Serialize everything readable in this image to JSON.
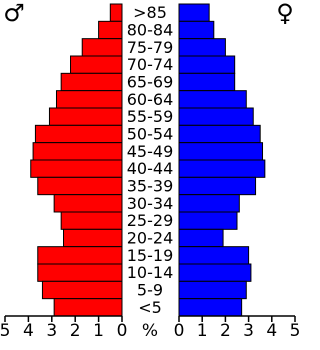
{
  "chart_data": {
    "type": "pyramid",
    "categories": [
      ">85",
      "80-84",
      "75-79",
      "70-74",
      "65-69",
      "60-64",
      "55-59",
      "50-54",
      "45-49",
      "40-44",
      "35-39",
      "30-34",
      "25-29",
      "20-24",
      "15-19",
      "10-14",
      "5-9",
      "<5"
    ],
    "series": [
      {
        "name": "♂",
        "color": "#ff0000",
        "values": [
          0.5,
          1.0,
          1.7,
          2.2,
          2.6,
          2.8,
          3.1,
          3.7,
          3.8,
          3.9,
          3.6,
          2.9,
          2.6,
          2.5,
          3.6,
          3.6,
          3.4,
          2.9
        ]
      },
      {
        "name": "♀",
        "color": "#0000ff",
        "values": [
          1.3,
          1.5,
          2.0,
          2.4,
          2.4,
          2.9,
          3.2,
          3.5,
          3.6,
          3.7,
          3.3,
          2.6,
          2.5,
          1.9,
          3.0,
          3.1,
          2.9,
          2.7
        ]
      }
    ],
    "x_label": "%",
    "xlim": [
      0,
      5
    ],
    "xticks": [
      0,
      1,
      2,
      3,
      4,
      5
    ]
  }
}
